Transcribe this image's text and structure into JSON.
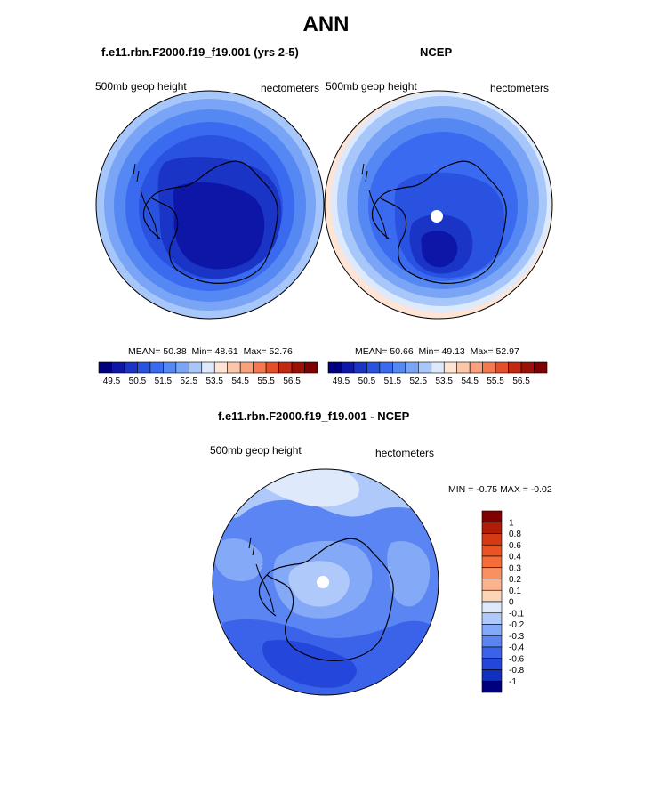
{
  "header": {
    "title": "ANN"
  },
  "left_panel": {
    "title": "f.e11.rbn.F2000.f19_f19.001 (yrs 2-5)",
    "var_label": "500mb geop height",
    "units": "hectometers",
    "stats": {
      "mean_label": "MEAN=",
      "mean": "50.38",
      "min_label": "Min=",
      "min": "48.61",
      "max_label": "Max=",
      "max": "52.76"
    }
  },
  "right_panel": {
    "title": "NCEP",
    "var_label": "500mb geop height",
    "units": "hectometers",
    "stats": {
      "mean_label": "MEAN=",
      "mean": "50.66",
      "min_label": "Min=",
      "min": "49.13",
      "max_label": "Max=",
      "max": "52.97"
    }
  },
  "diff_panel": {
    "title": "f.e11.rbn.F2000.f19_f19.001 - NCEP",
    "var_label": "500mb geop height",
    "units": "hectometers",
    "minmax": "MIN =  -0.75 MAX =  -0.02"
  },
  "chart_data": [
    {
      "type": "heatmap",
      "name": "model-500mb-geopotential-height",
      "projection": "south-polar-stereographic",
      "title": "f.e11.rbn.F2000.f19_f19.001 (yrs 2-5)",
      "units": "hectometers",
      "mean": 50.38,
      "min": 48.61,
      "max": 52.76,
      "colorbar": {
        "orientation": "horizontal",
        "levels": [
          49,
          49.5,
          50,
          50.5,
          51,
          51.5,
          52,
          52.5,
          53,
          53.5,
          54,
          54.5,
          55,
          55.5,
          56,
          56.5
        ],
        "tick_labels": [
          "49.5",
          "50.5",
          "51.5",
          "52.5",
          "53.5",
          "54.5",
          "55.5",
          "56.5"
        ],
        "colors": [
          "#00007e",
          "#0d16a6",
          "#1a34c6",
          "#2952e0",
          "#3a6af0",
          "#5688f4",
          "#7aa5f6",
          "#a7c6fa",
          "#dde9fc",
          "#fde4d4",
          "#fcc7a8",
          "#f9a07c",
          "#f5784f",
          "#e44f2a",
          "#c22912",
          "#9c1005",
          "#7e0000"
        ]
      }
    },
    {
      "type": "heatmap",
      "name": "ncep-500mb-geopotential-height",
      "projection": "south-polar-stereographic",
      "title": "NCEP",
      "units": "hectometers",
      "mean": 50.66,
      "min": 49.13,
      "max": 52.97,
      "colorbar": {
        "orientation": "horizontal",
        "levels": [
          49,
          49.5,
          50,
          50.5,
          51,
          51.5,
          52,
          52.5,
          53,
          53.5,
          54,
          54.5,
          55,
          55.5,
          56,
          56.5
        ],
        "tick_labels": [
          "49.5",
          "50.5",
          "51.5",
          "52.5",
          "53.5",
          "54.5",
          "55.5",
          "56.5"
        ],
        "colors": [
          "#00007e",
          "#0d16a6",
          "#1a34c6",
          "#2952e0",
          "#3a6af0",
          "#5688f4",
          "#7aa5f6",
          "#a7c6fa",
          "#dde9fc",
          "#fde4d4",
          "#fcc7a8",
          "#f9a07c",
          "#f5784f",
          "#e44f2a",
          "#c22912",
          "#9c1005",
          "#7e0000"
        ]
      }
    },
    {
      "type": "heatmap",
      "name": "difference-model-minus-ncep",
      "projection": "south-polar-stereographic",
      "title": "f.e11.rbn.F2000.f19_f19.001 - NCEP",
      "units": "hectometers",
      "min": -0.75,
      "max": -0.02,
      "colorbar": {
        "orientation": "vertical",
        "tick_labels": [
          "1",
          "0.8",
          "0.6",
          "0.4",
          "0.3",
          "0.2",
          "0.1",
          "0",
          "-0.1",
          "-0.2",
          "-0.3",
          "-0.4",
          "-0.6",
          "-0.8",
          "-1"
        ],
        "colors": [
          "#800000",
          "#b01e08",
          "#d43a14",
          "#ea5424",
          "#f46d3a",
          "#f99060",
          "#fbb38c",
          "#fcd4b8",
          "#deeafc",
          "#aec9fa",
          "#84a9f7",
          "#5a85f2",
          "#3b63ea",
          "#2446db",
          "#1230c0",
          "#00007e"
        ]
      }
    }
  ]
}
